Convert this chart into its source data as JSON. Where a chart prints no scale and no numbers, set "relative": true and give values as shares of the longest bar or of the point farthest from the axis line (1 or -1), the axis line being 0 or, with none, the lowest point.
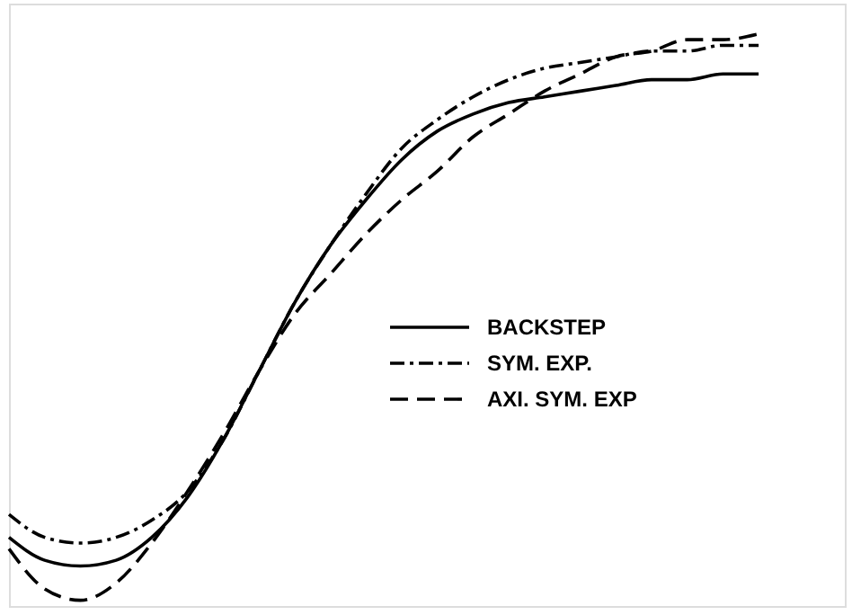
{
  "chart_data": {
    "type": "line",
    "relative": true,
    "legend": "right",
    "tick_labels": false,
    "grid": false,
    "categories": [
      null,
      null,
      null,
      null,
      null,
      null,
      null,
      null,
      null,
      null,
      null,
      null,
      null,
      null,
      null,
      null,
      null,
      null,
      null,
      null,
      null,
      null
    ],
    "series": [
      {
        "name": "BACKSTEP",
        "color": "#000000",
        "line_style": "solid",
        "values": [
          0.12,
          0.08,
          0.07,
          0.08,
          0.12,
          0.19,
          0.29,
          0.41,
          0.53,
          0.63,
          0.71,
          0.78,
          0.83,
          0.86,
          0.88,
          0.89,
          0.9,
          0.91,
          0.92,
          0.92,
          0.93,
          0.93
        ]
      },
      {
        "name": "SYM. EXP.",
        "color": "#000000",
        "line_style": "dashdot",
        "values": [
          0.16,
          0.12,
          0.11,
          0.12,
          0.15,
          0.2,
          0.29,
          0.41,
          0.53,
          0.63,
          0.72,
          0.8,
          0.85,
          0.89,
          0.92,
          0.94,
          0.95,
          0.96,
          0.97,
          0.97,
          0.98,
          0.98
        ]
      },
      {
        "name": "AXI. SYM. EXP",
        "color": "#000000",
        "line_style": "dashed",
        "values": [
          0.1,
          0.03,
          0.01,
          0.04,
          0.11,
          0.2,
          0.3,
          0.41,
          0.51,
          0.58,
          0.65,
          0.71,
          0.76,
          0.82,
          0.86,
          0.9,
          0.93,
          0.96,
          0.97,
          0.99,
          0.99,
          1.0
        ]
      }
    ]
  }
}
